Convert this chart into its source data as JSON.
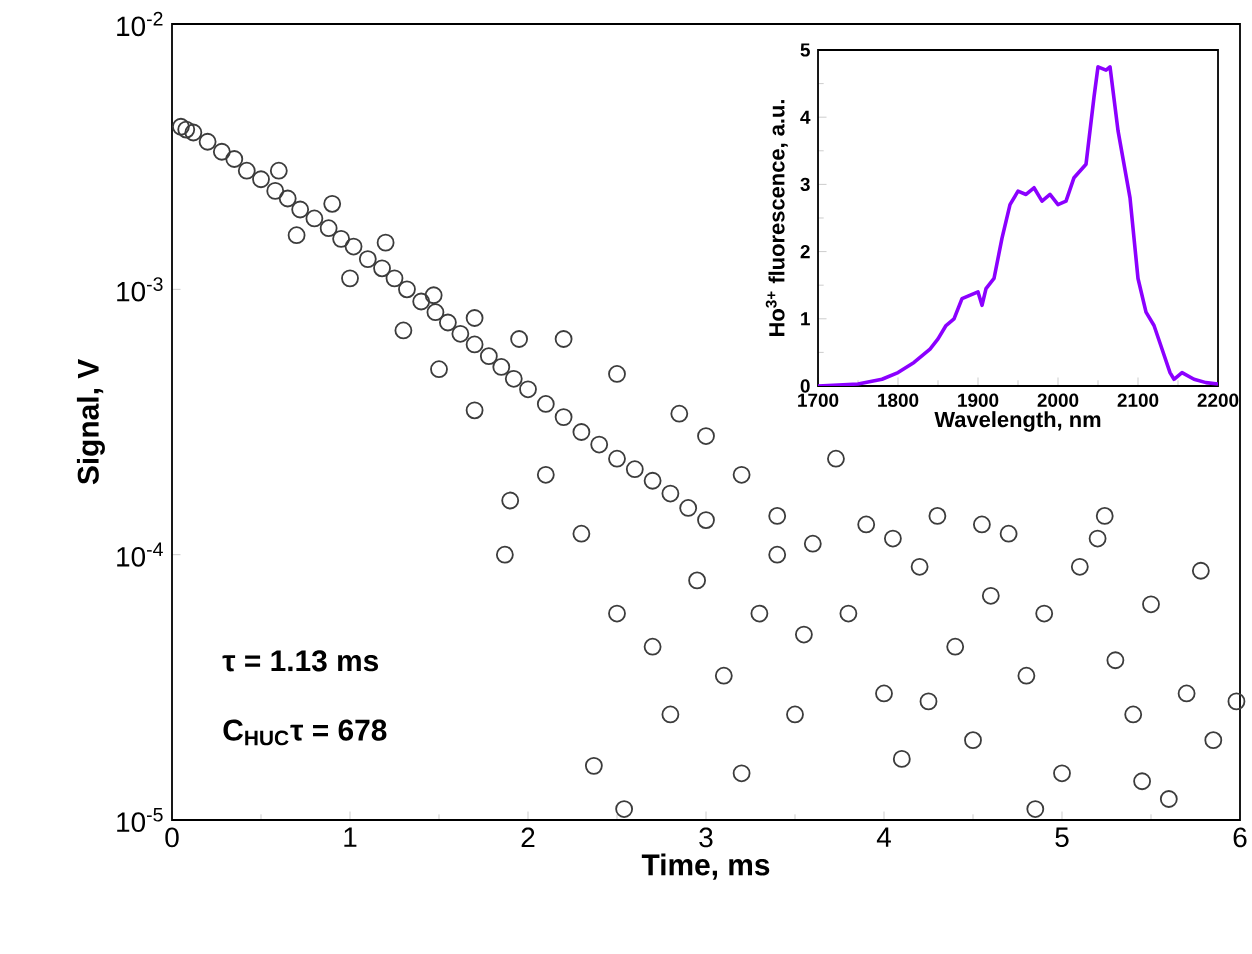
{
  "chart_data": [
    {
      "type": "scatter",
      "xlabel": "Time, ms",
      "ylabel": "Signal, V",
      "log": "y",
      "marker": "circle",
      "color": "#3c3c3c",
      "xlim": [
        0,
        6
      ],
      "ylim": [
        1e-05,
        0.01
      ],
      "xticks": [
        0,
        1,
        2,
        3,
        4,
        5,
        6
      ],
      "yticks": [
        {
          "value": 1e-05,
          "label": "10$^{-5}$"
        },
        {
          "value": 0.0001,
          "label": "10$^{-4}$"
        },
        {
          "value": 0.001,
          "label": "10$^{-3}$"
        },
        {
          "value": 0.01,
          "label": "10$^{-2}$"
        }
      ],
      "annotations": [
        "τ = 1.13 ms",
        "C$_{HUC}$τ = 678"
      ],
      "x": [
        0.05,
        0.08,
        0.12,
        0.2,
        0.28,
        0.35,
        0.42,
        0.5,
        0.58,
        0.65,
        0.72,
        0.8,
        0.88,
        0.95,
        1.02,
        1.1,
        1.18,
        1.25,
        1.32,
        1.4,
        1.48,
        1.55,
        1.62,
        1.7,
        1.78,
        1.85,
        1.92,
        2.0,
        2.1,
        2.2,
        2.3,
        2.4,
        2.5,
        2.6,
        2.7,
        2.8,
        2.9,
        3.0,
        0.6,
        0.9,
        1.2,
        1.47,
        1.7,
        1.95,
        2.2,
        2.5,
        2.85,
        3.0,
        0.7,
        1.0,
        1.3,
        1.5,
        1.7,
        1.87,
        1.9,
        2.1,
        2.3,
        2.37,
        2.54,
        2.5,
        2.7,
        2.8,
        2.95,
        3.1,
        3.2,
        3.3,
        3.4,
        3.5,
        3.2,
        3.4,
        3.6,
        3.73,
        3.8,
        3.9,
        4.0,
        4.1,
        4.2,
        4.3,
        4.4,
        4.5,
        4.6,
        4.7,
        4.8,
        4.9,
        5.0,
        5.1,
        5.24,
        5.3,
        5.4,
        5.5,
        5.6,
        5.7,
        5.78,
        5.85,
        5.98,
        4.05,
        4.55,
        5.2,
        3.55,
        4.25,
        4.85,
        5.45
      ],
      "values": [
        0.0041,
        0.004,
        0.0039,
        0.0036,
        0.0033,
        0.0031,
        0.0028,
        0.0026,
        0.00235,
        0.0022,
        0.002,
        0.00185,
        0.0017,
        0.00155,
        0.00145,
        0.0013,
        0.0012,
        0.0011,
        0.001,
        0.0009,
        0.00082,
        0.00075,
        0.00068,
        0.00062,
        0.00056,
        0.00051,
        0.00046,
        0.00042,
        0.00037,
        0.00033,
        0.00029,
        0.00026,
        0.00023,
        0.00021,
        0.00019,
        0.00017,
        0.00015,
        0.000135,
        0.0028,
        0.0021,
        0.0015,
        0.00095,
        0.00078,
        0.00065,
        0.00065,
        0.00048,
        0.00034,
        0.00028,
        0.0016,
        0.0011,
        0.0007,
        0.0005,
        0.00035,
        0.0001,
        0.00016,
        0.0002,
        0.00012,
        1.6e-05,
        1.1e-05,
        6e-05,
        4.5e-05,
        2.5e-05,
        8e-05,
        3.5e-05,
        1.5e-05,
        6e-05,
        0.0001,
        2.5e-05,
        0.0002,
        0.00014,
        0.00011,
        0.00023,
        6e-05,
        0.00013,
        3e-05,
        1.7e-05,
        9e-05,
        0.00014,
        4.5e-05,
        2e-05,
        7e-05,
        0.00012,
        3.5e-05,
        6e-05,
        1.5e-05,
        9e-05,
        0.00014,
        4e-05,
        2.5e-05,
        6.5e-05,
        1.2e-05,
        3e-05,
        8.7e-05,
        2e-05,
        2.8e-05,
        0.000115,
        0.00013,
        0.000115,
        5e-05,
        2.8e-05,
        1.1e-05,
        1.4e-05
      ]
    },
    {
      "type": "line",
      "xlabel": "Wavelength, nm",
      "ylabel": "Ho$^{3+}$ fluorescence, a.u.",
      "color": "#8b00ff",
      "xlim": [
        1700,
        2200
      ],
      "ylim": [
        0,
        5
      ],
      "xticks": [
        1700,
        1800,
        1900,
        2000,
        2100,
        2200
      ],
      "yticks": [
        0,
        1,
        2,
        3,
        4,
        5
      ],
      "x": [
        1700,
        1750,
        1780,
        1800,
        1820,
        1840,
        1850,
        1860,
        1870,
        1880,
        1890,
        1900,
        1905,
        1910,
        1920,
        1930,
        1940,
        1950,
        1960,
        1970,
        1980,
        1990,
        2000,
        2010,
        2020,
        2035,
        2045,
        2050,
        2060,
        2065,
        2075,
        2090,
        2100,
        2110,
        2120,
        2130,
        2140,
        2145,
        2155,
        2170,
        2185,
        2200
      ],
      "values": [
        0,
        0.03,
        0.1,
        0.2,
        0.35,
        0.55,
        0.7,
        0.9,
        1.0,
        1.3,
        1.35,
        1.4,
        1.2,
        1.45,
        1.6,
        2.2,
        2.7,
        2.9,
        2.85,
        2.95,
        2.75,
        2.85,
        2.7,
        2.75,
        3.1,
        3.3,
        4.3,
        4.75,
        4.7,
        4.75,
        3.8,
        2.8,
        1.6,
        1.1,
        0.9,
        0.55,
        0.2,
        0.1,
        0.2,
        0.1,
        0.05,
        0.03
      ]
    }
  ]
}
